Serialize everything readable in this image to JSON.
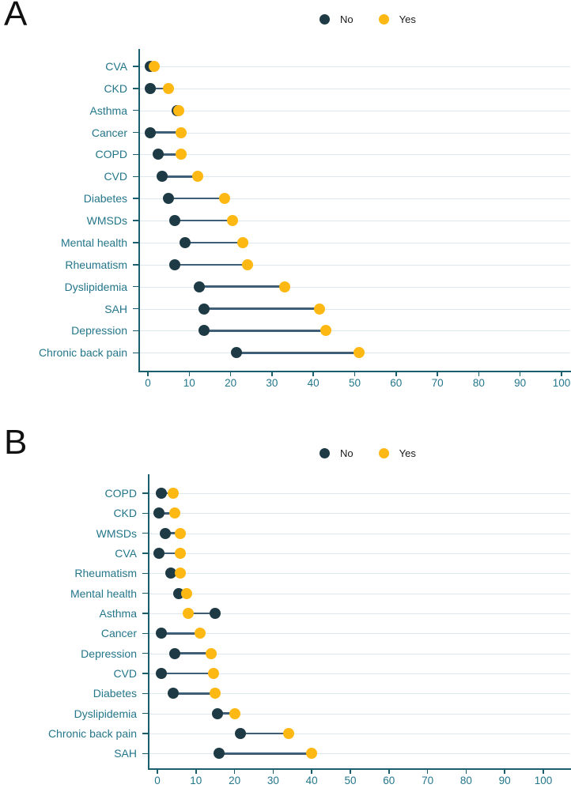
{
  "figure": {
    "panels": [
      {
        "label": "A"
      },
      {
        "label": "B"
      }
    ]
  },
  "colors": {
    "no": "#1e3a45",
    "yes": "#fdb813",
    "axis": "#1b5e6d",
    "tick_text": "#24768a",
    "category_text": "#24768a",
    "grid": "#dce8ef",
    "connector": "#3f5e78",
    "legend_text": "#1a1a1a"
  },
  "chart_data": [
    {
      "type": "dumbbell",
      "panel": "A",
      "title": "",
      "legend": [
        "No",
        "Yes"
      ],
      "legend_position": "top-center",
      "grid": true,
      "xlim": [
        0,
        100
      ],
      "xticks": [
        0,
        10,
        20,
        30,
        40,
        50,
        60,
        70,
        80,
        90,
        100
      ],
      "categories": [
        "CVA",
        "CKD",
        "Asthma",
        "Cancer",
        "COPD",
        "CVD",
        "Diabetes",
        "WMSDs",
        "Mental health",
        "Rheumatism",
        "Dyslipidemia",
        "SAH",
        "Depression",
        "Chronic back pain"
      ],
      "series": [
        {
          "name": "No",
          "values": [
            0.5,
            0.5,
            7,
            0.5,
            2.5,
            3.5,
            5,
            6.5,
            9,
            6.5,
            12.5,
            13.5,
            13.5,
            21.5
          ]
        },
        {
          "name": "Yes",
          "values": [
            1.5,
            5,
            7.5,
            8,
            8,
            12,
            18.5,
            20.5,
            23,
            24,
            33,
            41.5,
            43,
            51
          ]
        }
      ]
    },
    {
      "type": "dumbbell",
      "panel": "B",
      "title": "",
      "legend": [
        "No",
        "Yes"
      ],
      "legend_position": "top-center",
      "grid": true,
      "xlim": [
        0,
        100
      ],
      "xticks": [
        0,
        10,
        20,
        30,
        40,
        50,
        60,
        70,
        80,
        90,
        100
      ],
      "categories": [
        "COPD",
        "CKD",
        "WMSDs",
        "CVA",
        "Rheumatism",
        "Mental health",
        "Asthma",
        "Cancer",
        "Depression",
        "CVD",
        "Diabetes",
        "Dyslipidemia",
        "Chronic back pain",
        "SAH"
      ],
      "series": [
        {
          "name": "No",
          "values": [
            1,
            0.5,
            2,
            0.5,
            3.5,
            5.5,
            15,
            1,
            4.5,
            1,
            4,
            15.5,
            21.5,
            16
          ]
        },
        {
          "name": "Yes",
          "values": [
            4,
            4.5,
            6,
            6,
            6,
            7.5,
            8,
            11,
            14,
            14.5,
            15,
            20,
            34,
            40
          ]
        }
      ]
    }
  ]
}
